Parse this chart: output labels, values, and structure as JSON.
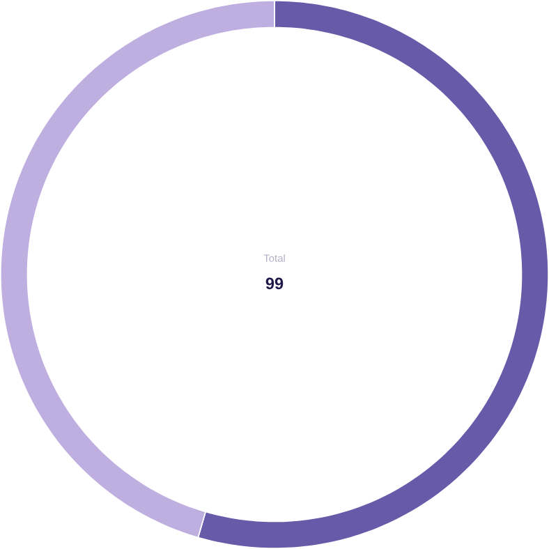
{
  "chart_data": {
    "type": "donut",
    "categories": [
      null,
      null
    ],
    "values": [
      54.5,
      45.5
    ],
    "colors": [
      "#675ba9",
      "#bfaee0"
    ],
    "annotations": [
      "Total",
      "99"
    ]
  }
}
